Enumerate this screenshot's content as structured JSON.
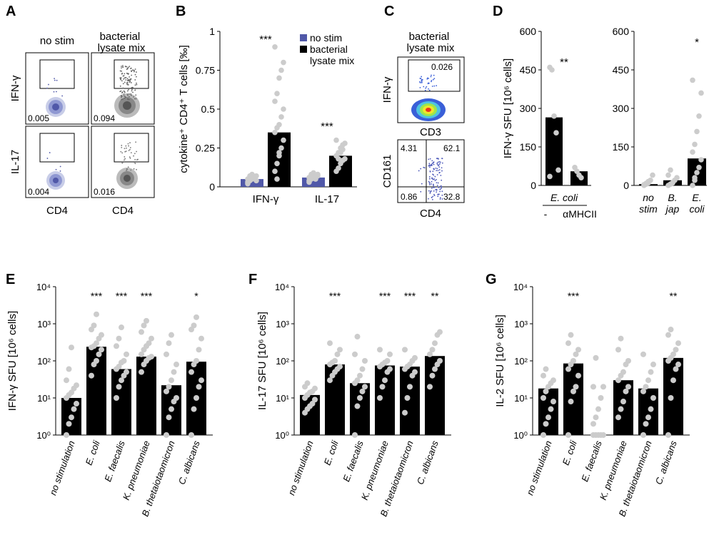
{
  "colors": {
    "bar": "#000000",
    "point": "#cccccc",
    "blue": "#5058a8",
    "gray_cells": "#7a7a7a"
  },
  "panelA": {
    "letter": "A",
    "col_titles": [
      "no stim",
      "bacterial lysate mix"
    ],
    "row_labels": [
      "IFN-γ",
      "IL-17"
    ],
    "xlabel": "CD4",
    "values": [
      "0.005",
      "0.094",
      "0.004",
      "0.016"
    ]
  },
  "chart_data": [
    {
      "panel": "B",
      "type": "bar",
      "categories": [
        "IFN-γ",
        "IL-17"
      ],
      "ylabel": "cytokine⁺ CD4⁺ T cells [‰]",
      "ylim": [
        0,
        1
      ],
      "yticks": [
        "0",
        "0.25",
        "0.5",
        "0.75",
        "1"
      ],
      "series": [
        {
          "name": "no stim",
          "values": [
            0.05,
            0.06
          ]
        },
        {
          "name": "bacterial lysate mix",
          "values": [
            0.35,
            0.2
          ]
        }
      ],
      "points": [
        [
          0.02,
          0.04,
          0.05,
          0.06,
          0.07,
          0.03,
          0.05,
          0.08,
          0.06,
          0.04,
          0.05,
          0.07
        ],
        [
          0.1,
          0.15,
          0.2,
          0.25,
          0.3,
          0.35,
          0.38,
          0.4,
          0.45,
          0.5,
          0.55,
          0.6,
          0.7,
          0.75,
          0.8,
          0.9,
          0.05,
          0.22
        ],
        [
          0.03,
          0.05,
          0.06,
          0.07,
          0.08,
          0.04,
          0.06,
          0.09,
          0.05,
          0.07,
          0.06,
          0.08
        ],
        [
          0.1,
          0.12,
          0.15,
          0.17,
          0.18,
          0.2,
          0.22,
          0.25,
          0.27,
          0.28,
          0.3,
          0.18,
          0.22,
          0.24
        ]
      ],
      "significance": [
        "***",
        "***"
      ],
      "legend_position": "top-right"
    },
    {
      "panel": "D-left",
      "type": "bar",
      "categories": [
        "-",
        "αMHCII"
      ],
      "group_label": "E. coli",
      "ylabel": "IFN-γ SFU [10⁶ cells]",
      "ylim": [
        0,
        600
      ],
      "yticks": [
        "0",
        "150",
        "300",
        "450",
        "600"
      ],
      "values": [
        265,
        55
      ],
      "points": [
        [
          460,
          450,
          270,
          205,
          60,
          35
        ],
        [
          70,
          55,
          40,
          30
        ]
      ],
      "significance": "**"
    },
    {
      "panel": "D-right",
      "type": "bar",
      "categories": [
        "no stim",
        "B. jap",
        "E. coli"
      ],
      "ylim": [
        0,
        600
      ],
      "yticks": [
        "0",
        "150",
        "300",
        "450",
        "600"
      ],
      "values": [
        5,
        20,
        105
      ],
      "points": [
        [
          0,
          5,
          10,
          20,
          40,
          3,
          8,
          15
        ],
        [
          0,
          5,
          10,
          20,
          30,
          40,
          60,
          10
        ],
        [
          0,
          30,
          50,
          70,
          100,
          130,
          160,
          210,
          270,
          360,
          410,
          20
        ]
      ],
      "significance": [
        "",
        "",
        "*"
      ]
    },
    {
      "panel": "E",
      "type": "bar",
      "yscale": "log",
      "categories": [
        "no stimulation",
        "E. coli",
        "E. faecalis",
        "K. pneumoniae",
        "B. thetaiotaomicron",
        "C. albicans"
      ],
      "ylabel": "IFN-γ SFU [10⁶ cells]",
      "ylim": [
        1,
        10000
      ],
      "values": [
        10,
        240,
        60,
        130,
        22,
        95
      ],
      "points": [
        [
          1,
          2,
          3,
          5,
          7,
          10,
          12,
          14,
          18,
          22,
          30,
          60,
          230
        ],
        [
          40,
          80,
          100,
          150,
          200,
          230,
          250,
          300,
          400,
          500,
          700,
          900,
          1800
        ],
        [
          10,
          20,
          30,
          40,
          50,
          60,
          70,
          90,
          100,
          150,
          250,
          400,
          800
        ],
        [
          50,
          80,
          100,
          120,
          130,
          150,
          200,
          250,
          300,
          400,
          600,
          900,
          1200
        ],
        [
          1,
          3,
          5,
          8,
          10,
          15,
          20,
          30,
          50,
          80,
          150,
          300,
          500
        ],
        [
          1,
          5,
          10,
          20,
          30,
          50,
          80,
          100,
          200,
          400,
          700,
          900,
          1500
        ]
      ],
      "significance": [
        "",
        "***",
        "***",
        "***",
        "",
        "*"
      ]
    },
    {
      "panel": "F",
      "type": "bar",
      "yscale": "log",
      "categories": [
        "no stimulation",
        "E. coli",
        "E. faecalis",
        "K. pneumoniae",
        "B. thetaiotaomicron",
        "C. albicans"
      ],
      "ylabel": "IL-17 SFU [10⁶ cells]",
      "ylim": [
        1,
        10000
      ],
      "values": [
        12,
        80,
        25,
        75,
        70,
        135
      ],
      "points": [
        [
          4,
          5,
          6,
          7,
          9,
          10,
          12,
          14,
          15,
          18,
          20,
          25
        ],
        [
          30,
          40,
          50,
          60,
          70,
          80,
          90,
          100,
          150,
          200,
          300
        ],
        [
          1,
          6,
          10,
          15,
          20,
          25,
          30,
          40,
          60,
          100,
          150,
          450
        ],
        [
          10,
          20,
          30,
          50,
          60,
          70,
          80,
          90,
          100,
          150,
          200
        ],
        [
          4,
          10,
          20,
          40,
          50,
          60,
          70,
          80,
          100,
          120,
          200
        ],
        [
          20,
          40,
          60,
          80,
          100,
          150,
          200,
          300,
          500,
          600
        ]
      ],
      "significance": [
        "",
        "***",
        "",
        "***",
        "***",
        "**"
      ]
    },
    {
      "panel": "G",
      "type": "bar",
      "yscale": "log",
      "categories": [
        "no stimulation",
        "E. coli",
        "E. faecalis",
        "K. pneumoniae",
        "B. thetaiotaomicron",
        "C. albicans"
      ],
      "ylabel": "IL-2  SFU [10⁶ cells]",
      "ylim": [
        1,
        10000
      ],
      "values": [
        18,
        85,
        1,
        30,
        18,
        120
      ],
      "points": [
        [
          1,
          2,
          3,
          5,
          8,
          10,
          15,
          20,
          25,
          30,
          40,
          60
        ],
        [
          1,
          8,
          15,
          20,
          40,
          60,
          80,
          100,
          150,
          200,
          300,
          500
        ],
        [
          1,
          1,
          1,
          1,
          1,
          2,
          3,
          5,
          10,
          20,
          20,
          120
        ],
        [
          3,
          5,
          8,
          15,
          20,
          30,
          40,
          50,
          80,
          100,
          200,
          400
        ],
        [
          1,
          2,
          3,
          5,
          10,
          15,
          20,
          30,
          50,
          80,
          150
        ],
        [
          1,
          10,
          30,
          60,
          80,
          100,
          120,
          150,
          200,
          300,
          500,
          700
        ]
      ],
      "significance": [
        "",
        "***",
        "",
        "",
        "",
        "**"
      ]
    }
  ],
  "panelB": {
    "letter": "B"
  },
  "panelC": {
    "letter": "C",
    "title": "bacterial lysate mix",
    "top_ylabel": "IFN-γ",
    "top_xlabel": "CD3",
    "top_value": "0.026",
    "bottom_ylabel": "CD161",
    "bottom_xlabel": "CD4",
    "quadrants": [
      "4.31",
      "62.1",
      "0.86",
      "32.8"
    ]
  },
  "panelD": {
    "letter": "D"
  },
  "panelE": {
    "letter": "E"
  },
  "panelF": {
    "letter": "F"
  },
  "panelG": {
    "letter": "G"
  }
}
